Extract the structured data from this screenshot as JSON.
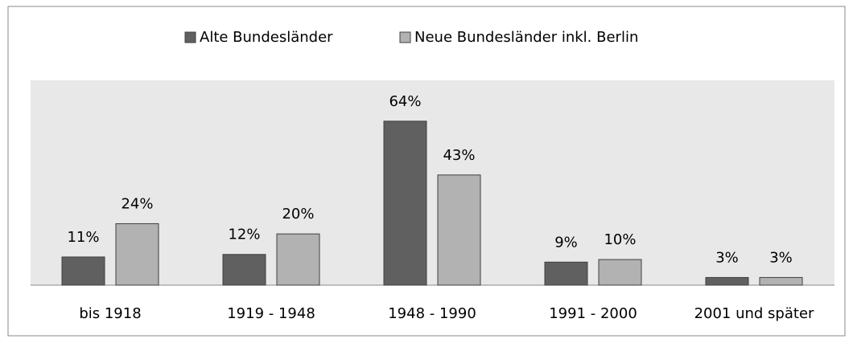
{
  "chart_data": {
    "type": "bar",
    "categories": [
      "bis 1918",
      "1919 - 1948",
      "1948 - 1990",
      "1991 - 2000",
      "2001 und später"
    ],
    "series": [
      {
        "name": "Alte Bundesländer",
        "color": "#606060",
        "values": [
          11,
          12,
          64,
          9,
          3
        ],
        "value_labels": [
          "11%",
          "12%",
          "64%",
          "9%",
          "3%"
        ]
      },
      {
        "name": "Neue Bundesländer inkl. Berlin",
        "color": "#b2b2b2",
        "values": [
          24,
          20,
          43,
          10,
          3
        ],
        "value_labels": [
          "24%",
          "20%",
          "43%",
          "10%",
          "3%"
        ]
      }
    ],
    "legend": "top"
  }
}
